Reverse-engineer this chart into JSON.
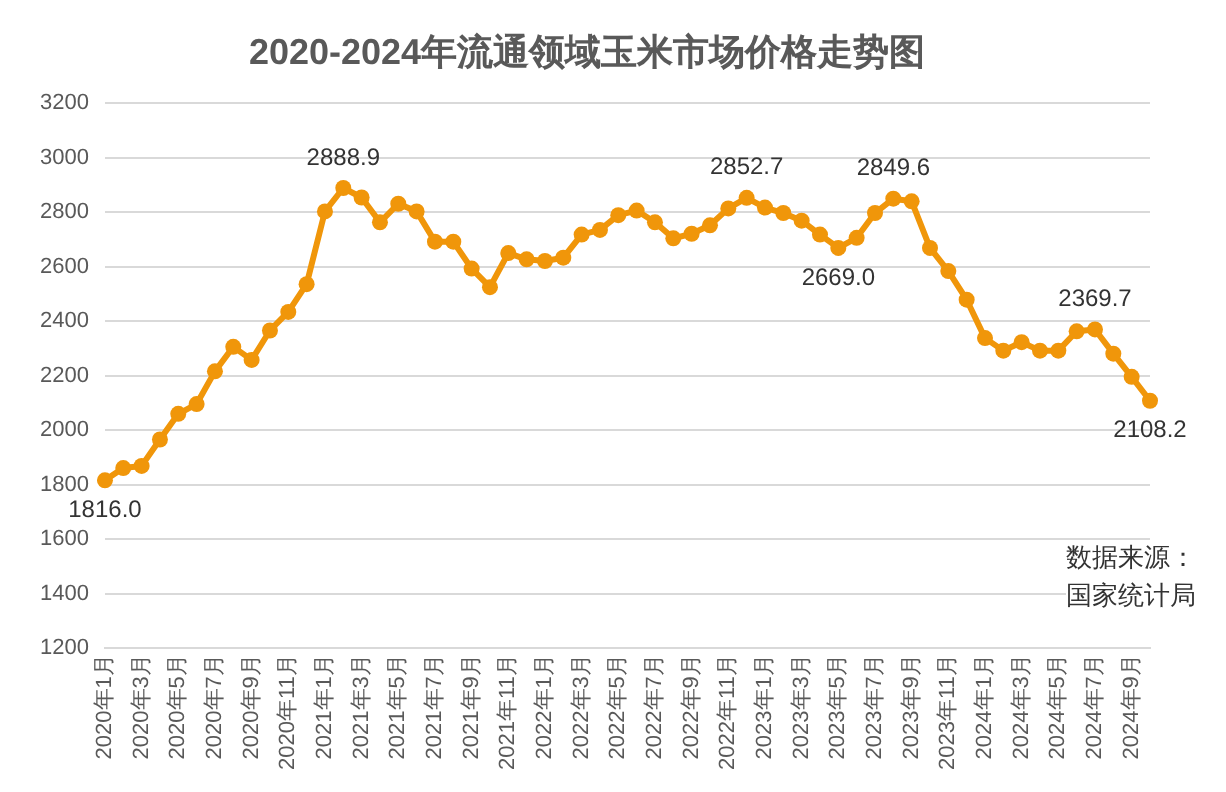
{
  "chart_data": {
    "type": "line",
    "title": "2020-2024年流通领域玉米市场价格走势图",
    "categories": [
      "2020年1月",
      null,
      "2020年3月",
      null,
      "2020年5月",
      null,
      "2020年7月",
      null,
      "2020年9月",
      null,
      "2020年11月",
      null,
      "2021年1月",
      null,
      "2021年3月",
      null,
      "2021年5月",
      null,
      "2021年7月",
      null,
      "2021年9月",
      null,
      "2021年11月",
      null,
      "2022年1月",
      null,
      "2022年3月",
      null,
      "2022年5月",
      null,
      "2022年7月",
      null,
      "2022年9月",
      null,
      "2022年11月",
      null,
      "2023年1月",
      null,
      "2023年3月",
      null,
      "2023年5月",
      null,
      "2023年7月",
      null,
      "2023年9月",
      null,
      "2023年11月",
      null,
      "2024年1月",
      null,
      "2024年3月",
      null,
      "2024年5月",
      null,
      "2024年7月",
      null,
      "2024年9月",
      null
    ],
    "series": [
      {
        "color": "#f0960a",
        "values": [
          1816.0,
          1861,
          1869,
          1966,
          2060,
          2096,
          2216,
          2306,
          2258,
          2366,
          2434,
          2536,
          2803,
          2888.9,
          2854,
          2763,
          2831,
          2803,
          2692,
          2692,
          2593,
          2525,
          2650,
          2627,
          2621,
          2633,
          2718,
          2735,
          2789,
          2806,
          2763,
          2704,
          2721,
          2752,
          2814,
          2852.7,
          2817,
          2797,
          2769,
          2718,
          2669.0,
          2706,
          2797,
          2849.6,
          2840,
          2669,
          2584,
          2479,
          2338,
          2292,
          2323,
          2292,
          2292,
          2363,
          2369.7,
          2281,
          2196,
          2108.2
        ],
        "value_labels": [
          "1816.0",
          null,
          null,
          null,
          null,
          null,
          null,
          null,
          null,
          null,
          null,
          null,
          null,
          "2888.9",
          null,
          null,
          null,
          null,
          null,
          null,
          null,
          null,
          null,
          null,
          null,
          null,
          null,
          null,
          null,
          null,
          null,
          null,
          null,
          null,
          null,
          "2852.7",
          null,
          null,
          null,
          null,
          "2669.0",
          null,
          null,
          "2849.6",
          null,
          null,
          null,
          null,
          null,
          null,
          null,
          null,
          null,
          null,
          "2369.7",
          null,
          null,
          "2108.2"
        ]
      }
    ],
    "ylim": [
      1200,
      3200
    ],
    "yticks": [
      1200,
      1400,
      1600,
      1800,
      2000,
      2200,
      2400,
      2600,
      2800,
      3000,
      3200
    ],
    "grid": "y",
    "legend": false,
    "marker": "circle",
    "line_style": "solid",
    "annotations": [
      "数据来源：国家统计局"
    ]
  }
}
